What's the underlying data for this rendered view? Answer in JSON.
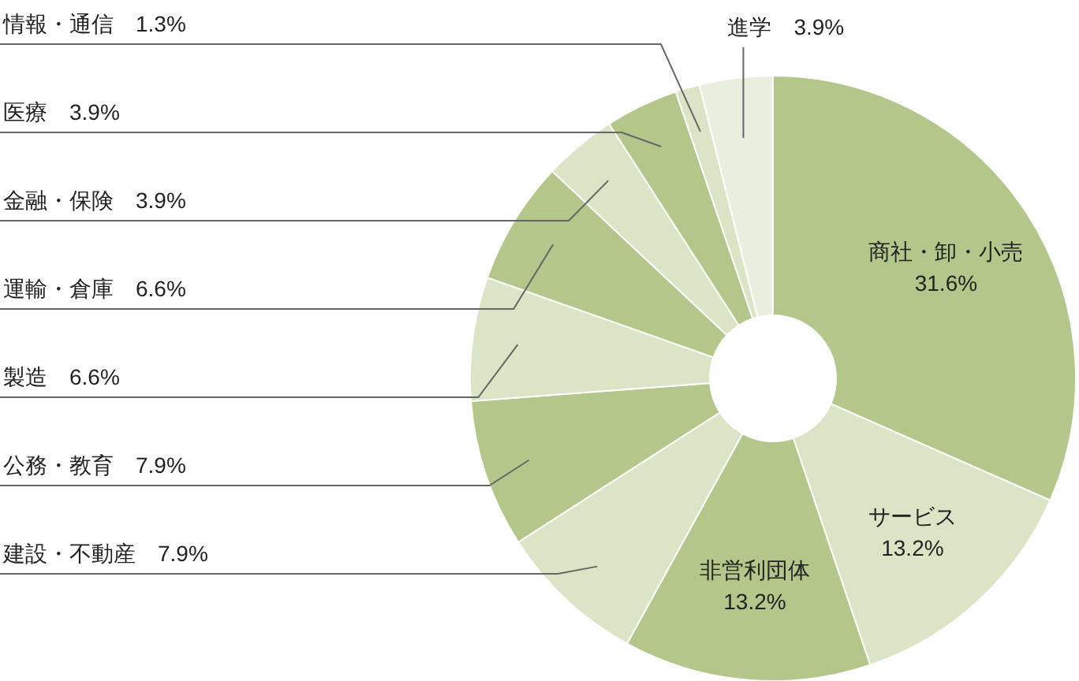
{
  "chart_data": {
    "type": "donut",
    "categories": [
      "商社・卸・小売",
      "サービス",
      "非営利団体",
      "建設・不動産",
      "公務・教育",
      "製造",
      "運輸・倉庫",
      "金融・保険",
      "医療",
      "情報・通信",
      "進学"
    ],
    "values": [
      31.6,
      13.2,
      13.2,
      7.9,
      7.9,
      6.6,
      6.6,
      3.9,
      3.9,
      1.3,
      3.9
    ],
    "colors": [
      "#b3c78a",
      "#dbe5c6",
      "#b3c78a",
      "#dbe5c6",
      "#b3c78a",
      "#dbe5c6",
      "#b3c78a",
      "#dbe5c6",
      "#b3c78a",
      "#dbe5c6",
      "#e9efdf"
    ],
    "value_labels": [
      "31.6%",
      "13.2%",
      "13.2%",
      "7.9%",
      "7.9%",
      "6.6%",
      "6.6%",
      "3.9%",
      "3.9%",
      "1.3%",
      "3.9%"
    ]
  }
}
